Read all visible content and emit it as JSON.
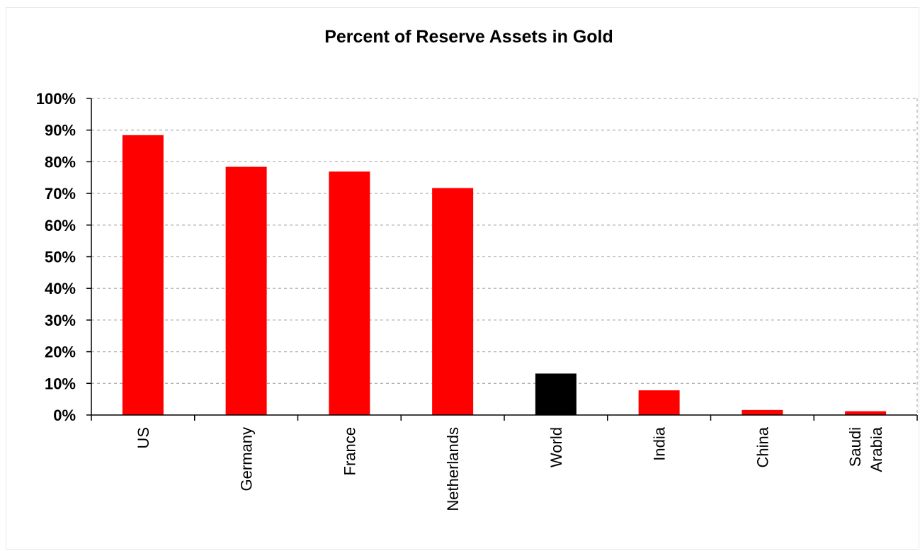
{
  "chart_data": {
    "type": "bar",
    "title": "Percent of Reserve Assets in Gold",
    "categories": [
      [
        "US"
      ],
      [
        "Germany"
      ],
      [
        "France"
      ],
      [
        "Netherlands"
      ],
      [
        "World"
      ],
      [
        "India"
      ],
      [
        "China"
      ],
      [
        "Saudi",
        "Arabia"
      ]
    ],
    "values": [
      88.4,
      78.4,
      76.9,
      71.7,
      13.1,
      7.8,
      1.6,
      1.2
    ],
    "bar_colors": [
      "#ff0000",
      "#ff0000",
      "#ff0000",
      "#ff0000",
      "#000000",
      "#ff0000",
      "#ff0000",
      "#ff0000"
    ],
    "y_ticks": [
      "0%",
      "10%",
      "20%",
      "30%",
      "40%",
      "50%",
      "60%",
      "70%",
      "80%",
      "90%",
      "100%"
    ],
    "ylim": [
      0,
      100
    ],
    "xlabel": "",
    "ylabel": "",
    "grid": true,
    "legend": "none"
  }
}
